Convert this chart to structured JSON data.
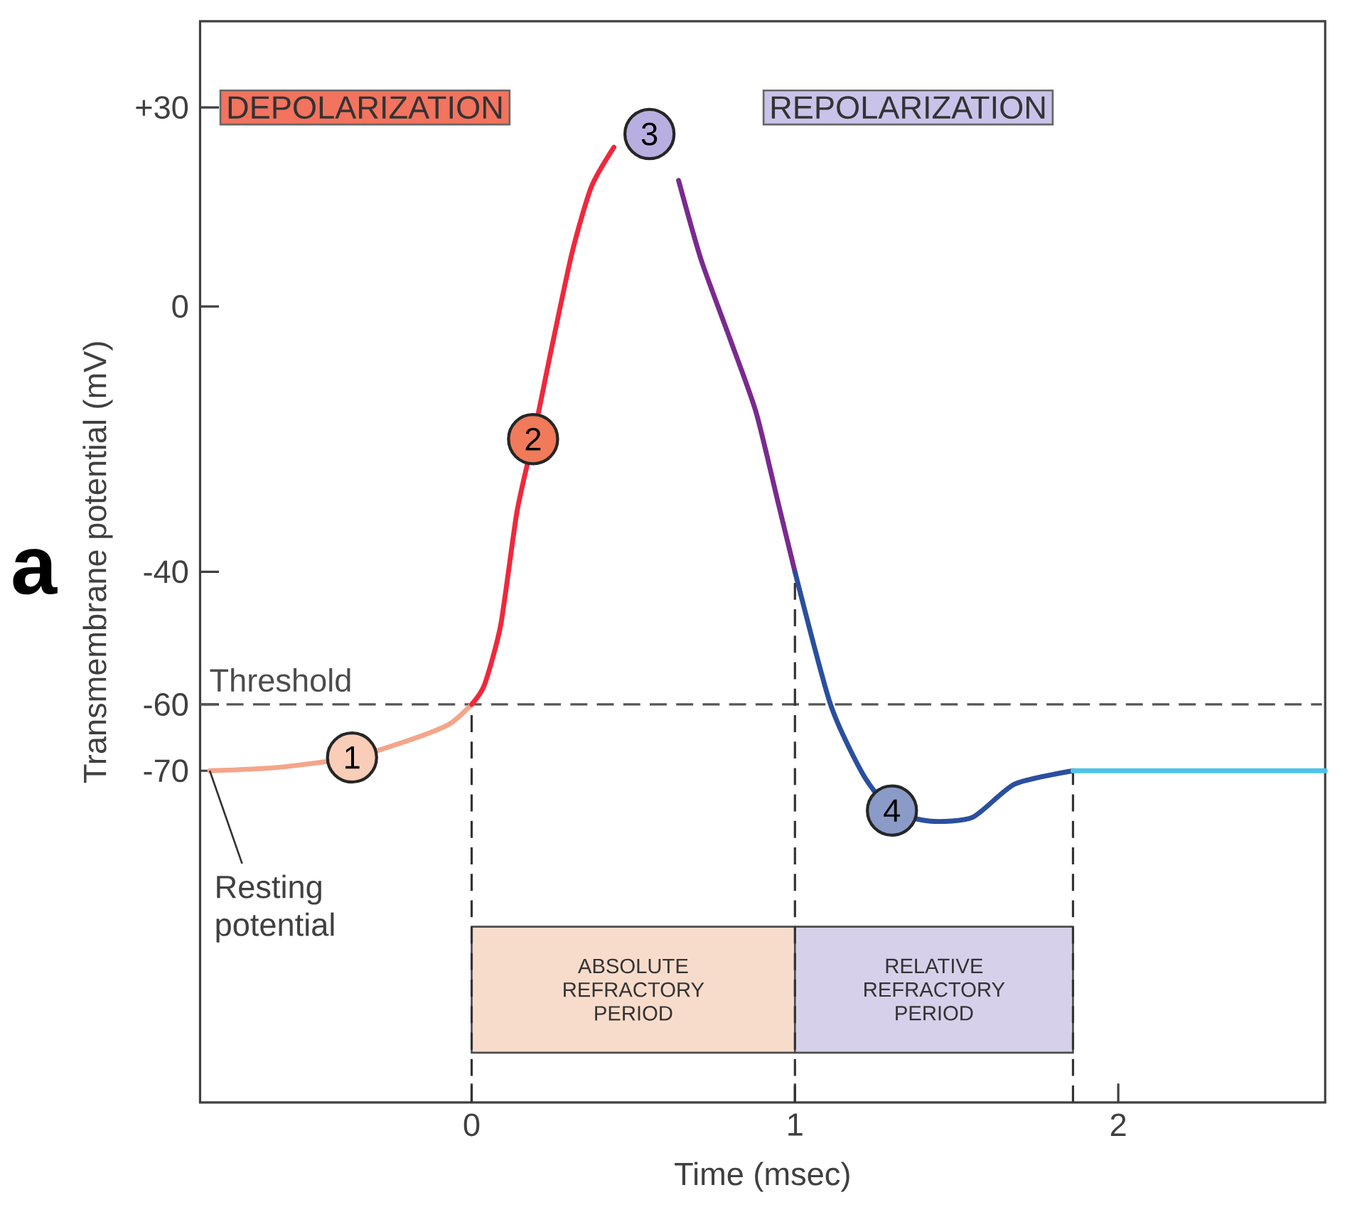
{
  "chart_data": {
    "type": "line",
    "xlabel": "Time (msec)",
    "ylabel": "Transmembrane potential (mV)",
    "xlim": [
      -0.84,
      2.64
    ],
    "ylim": [
      -120,
      43
    ],
    "xticks": [
      0,
      1,
      2
    ],
    "yticks": [
      {
        "value": 30,
        "label": "+30"
      },
      0,
      -40,
      -60,
      -70
    ],
    "marker": "none",
    "line_style": "solid",
    "series": [
      {
        "color": "#f4a58a",
        "x": [
          -0.81,
          -0.6,
          -0.37,
          -0.2,
          -0.07,
          0
        ],
        "values": [
          -70,
          -69.5,
          -68,
          -65.5,
          -63,
          -60
        ]
      },
      {
        "color": "#f0283c",
        "x": [
          0,
          0.04,
          0.09,
          0.14,
          0.19,
          0.24,
          0.31,
          0.37,
          0.44
        ],
        "values": [
          -60,
          -57,
          -48,
          -31,
          -20,
          -8,
          8,
          18,
          24
        ]
      },
      {
        "color": "#7a2a90",
        "x": [
          0.64,
          0.71,
          0.8,
          0.88,
          0.95,
          1.0
        ],
        "values": [
          19,
          7,
          -5,
          -16,
          -30,
          -40
        ]
      },
      {
        "color": "#2a4f9e",
        "x": [
          1.0,
          1.11,
          1.21,
          1.3,
          1.42,
          1.55,
          1.68,
          1.86
        ],
        "values": [
          -40,
          -60,
          -70.5,
          -76,
          -77.6,
          -77,
          -72,
          -70
        ]
      },
      {
        "color": "#4fc3e8",
        "x": [
          1.86,
          2.64
        ],
        "values": [
          -70,
          -70
        ]
      }
    ],
    "ref_lines": [
      {
        "axis": "y",
        "value": -60,
        "label": "Threshold",
        "color": "#555555",
        "line_style": "dashed"
      },
      {
        "axis": "x",
        "value": 0,
        "color": "#333333",
        "line_style": "dashed"
      },
      {
        "axis": "x",
        "value": 1,
        "color": "#333333",
        "line_style": "dashed"
      },
      {
        "axis": "x",
        "value": 1.86,
        "color": "#333333",
        "line_style": "dashed"
      }
    ],
    "bands": [
      {
        "axis": "x",
        "from": 0,
        "to": 1,
        "label": "ABSOLUTE REFRACTORY PERIOD",
        "color": "#f8dccb"
      },
      {
        "axis": "x",
        "from": 1,
        "to": 1.86,
        "label": "RELATIVE REFRACTORY PERIOD",
        "color": "#d6d0ea"
      }
    ],
    "annotations": [
      {
        "text": "1",
        "x": -0.37,
        "y": -68
      },
      {
        "text": "2",
        "x": 0.19,
        "y": -20
      },
      {
        "text": "3",
        "x": 0.55,
        "y": 26
      },
      {
        "text": "4",
        "x": 1.3,
        "y": -76
      },
      {
        "text": "Resting potential",
        "x": -0.81,
        "y": -70
      },
      "DEPOLARIZATION",
      "REPOLARIZATION",
      "a"
    ]
  }
}
